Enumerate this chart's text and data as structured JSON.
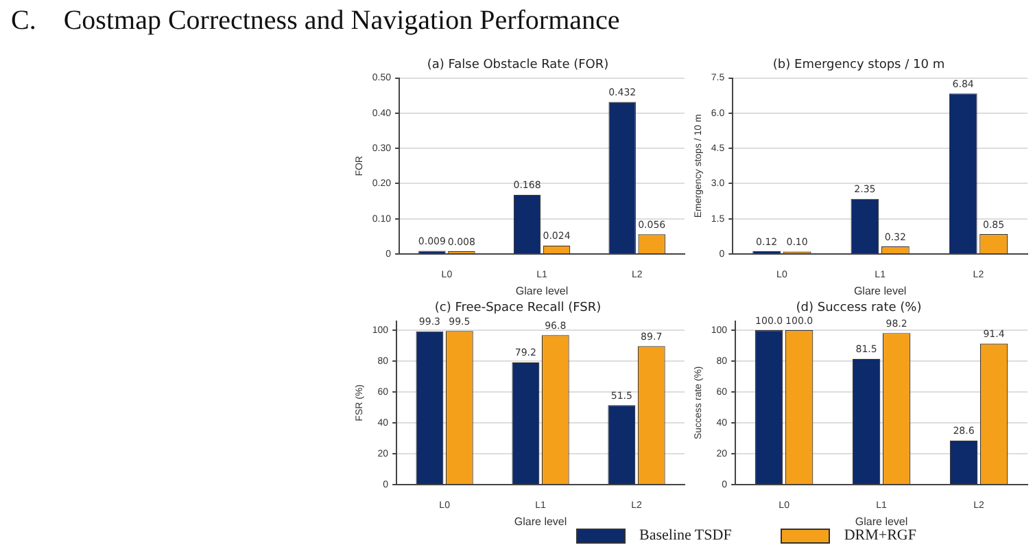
{
  "chart_data": [
    {
      "type": "bar",
      "title": "(a) False Obstacle Rate (FOR)",
      "annotations": [
        "C.    Costmap Correctness and Navigation Performance"
      ],
      "xlabel": "Glare level",
      "ylabel": "FOR",
      "categories": [
        "L0",
        "L1",
        "L2"
      ],
      "series": [
        {
          "name": "Baseline TSDF",
          "color": "#0d2a6b",
          "values": [
            0.009,
            0.168,
            0.432
          ],
          "value_labels": [
            "0.009",
            "0.168",
            "0.432"
          ]
        },
        {
          "name": "DRM+RGF",
          "color": "#f5a01a",
          "values": [
            0.008,
            0.024,
            0.056
          ],
          "value_labels": [
            "0.008",
            "0.024",
            "0.056"
          ]
        }
      ],
      "ylim": [
        0,
        0.5
      ],
      "yticks": [
        0,
        {
          "value": 0.1,
          "label": "0.10"
        },
        {
          "value": 0.2,
          "label": "0.20"
        },
        {
          "value": 0.3,
          "label": "0.30"
        },
        {
          "value": 0.4,
          "label": "0.40"
        },
        {
          "value": 0.5,
          "label": "0.50"
        }
      ],
      "grid": "y",
      "legend": "bottom"
    },
    {
      "type": "bar",
      "title": "(b) Emergency stops / 10 m",
      "xlabel": "Glare level",
      "ylabel": "Emergency stops / 10 m",
      "categories": [
        "L0",
        "L1",
        "L2"
      ],
      "series": [
        {
          "name": "Baseline TSDF",
          "color": "#0d2a6b",
          "values": [
            0.12,
            2.35,
            6.84
          ],
          "value_labels": [
            "0.12",
            "2.35",
            "6.84"
          ]
        },
        {
          "name": "DRM+RGF",
          "color": "#f5a01a",
          "values": [
            0.1,
            0.32,
            0.85
          ],
          "value_labels": [
            "0.10",
            "0.32",
            "0.85"
          ]
        }
      ],
      "ylim": [
        0,
        7.5
      ],
      "yticks": [
        0,
        1.5,
        {
          "value": 3,
          "label": "3.0"
        },
        4.5,
        {
          "value": 6,
          "label": "6.0"
        },
        7.5
      ],
      "grid": "y",
      "legend": "bottom"
    },
    {
      "type": "bar",
      "title": "(c) Free-Space Recall (FSR)",
      "xlabel": "Glare level",
      "ylabel": "FSR (%)",
      "categories": [
        "L0",
        "L1",
        "L2"
      ],
      "series": [
        {
          "name": "Baseline TSDF",
          "color": "#0d2a6b",
          "values": [
            99.3,
            79.2,
            51.5
          ],
          "value_labels": [
            "99.3",
            "79.2",
            "51.5"
          ]
        },
        {
          "name": "DRM+RGF",
          "color": "#f5a01a",
          "values": [
            99.5,
            96.8,
            89.7
          ],
          "value_labels": [
            "99.5",
            "96.8",
            "89.7"
          ]
        }
      ],
      "ylim": [
        0,
        106
      ],
      "yticks": [
        0,
        20,
        40,
        60,
        80,
        100
      ],
      "grid": "y",
      "legend": "bottom"
    },
    {
      "type": "bar",
      "title": "(d) Success rate (%)",
      "xlabel": "Glare level",
      "ylabel": "Success rate (%)",
      "categories": [
        "L0",
        "L1",
        "L2"
      ],
      "series": [
        {
          "name": "Baseline TSDF",
          "color": "#0d2a6b",
          "values": [
            100,
            81.5,
            28.6
          ],
          "value_labels": [
            "100.0",
            "81.5",
            "28.6"
          ]
        },
        {
          "name": "DRM+RGF",
          "color": "#f5a01a",
          "values": [
            100,
            98.2,
            91.4
          ],
          "value_labels": [
            "100.0",
            "98.2",
            "91.4"
          ]
        }
      ],
      "ylim": [
        0,
        106
      ],
      "yticks": [
        0,
        20,
        40,
        60,
        80,
        100
      ],
      "grid": "y",
      "legend": "bottom"
    }
  ]
}
